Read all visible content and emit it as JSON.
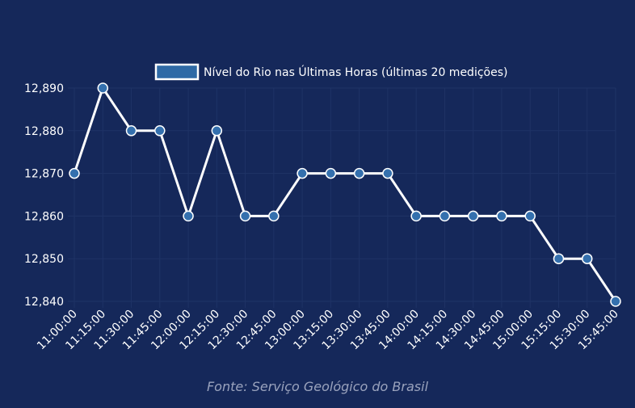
{
  "chart_data": {
    "type": "line",
    "legend": {
      "label": "Nível do Rio nas Últimas Horas (últimas 20 medições)",
      "position": "top-center"
    },
    "categories": [
      "11:00:00",
      "11:15:00",
      "11:30:00",
      "11:45:00",
      "12:00:00",
      "12:15:00",
      "12:30:00",
      "12:45:00",
      "13:00:00",
      "13:15:00",
      "13:30:00",
      "13:45:00",
      "14:00:00",
      "14:15:00",
      "14:30:00",
      "14:45:00",
      "15:00:00",
      "15:15:00",
      "15:30:00",
      "15:45:00"
    ],
    "values": [
      12.87,
      12.89,
      12.88,
      12.88,
      12.86,
      12.88,
      12.86,
      12.86,
      12.87,
      12.87,
      12.87,
      12.87,
      12.86,
      12.86,
      12.86,
      12.86,
      12.86,
      12.85,
      12.85,
      12.84
    ],
    "y_ticks": [
      "12,840",
      "12,850",
      "12,860",
      "12,870",
      "12,880",
      "12,890"
    ],
    "ylim": [
      12.84,
      12.89
    ],
    "grid": true,
    "colors": {
      "background": "#15285a",
      "line": "#ffffff",
      "point_fill": "#3470ae",
      "point_stroke": "#ffffff",
      "legend_swatch": "#2f6aa6",
      "grid": "#1f3366",
      "text": "#ffffff",
      "source": "#9aa3bd"
    }
  },
  "footer": {
    "source": "Fonte: Serviço Geológico do Brasil"
  }
}
